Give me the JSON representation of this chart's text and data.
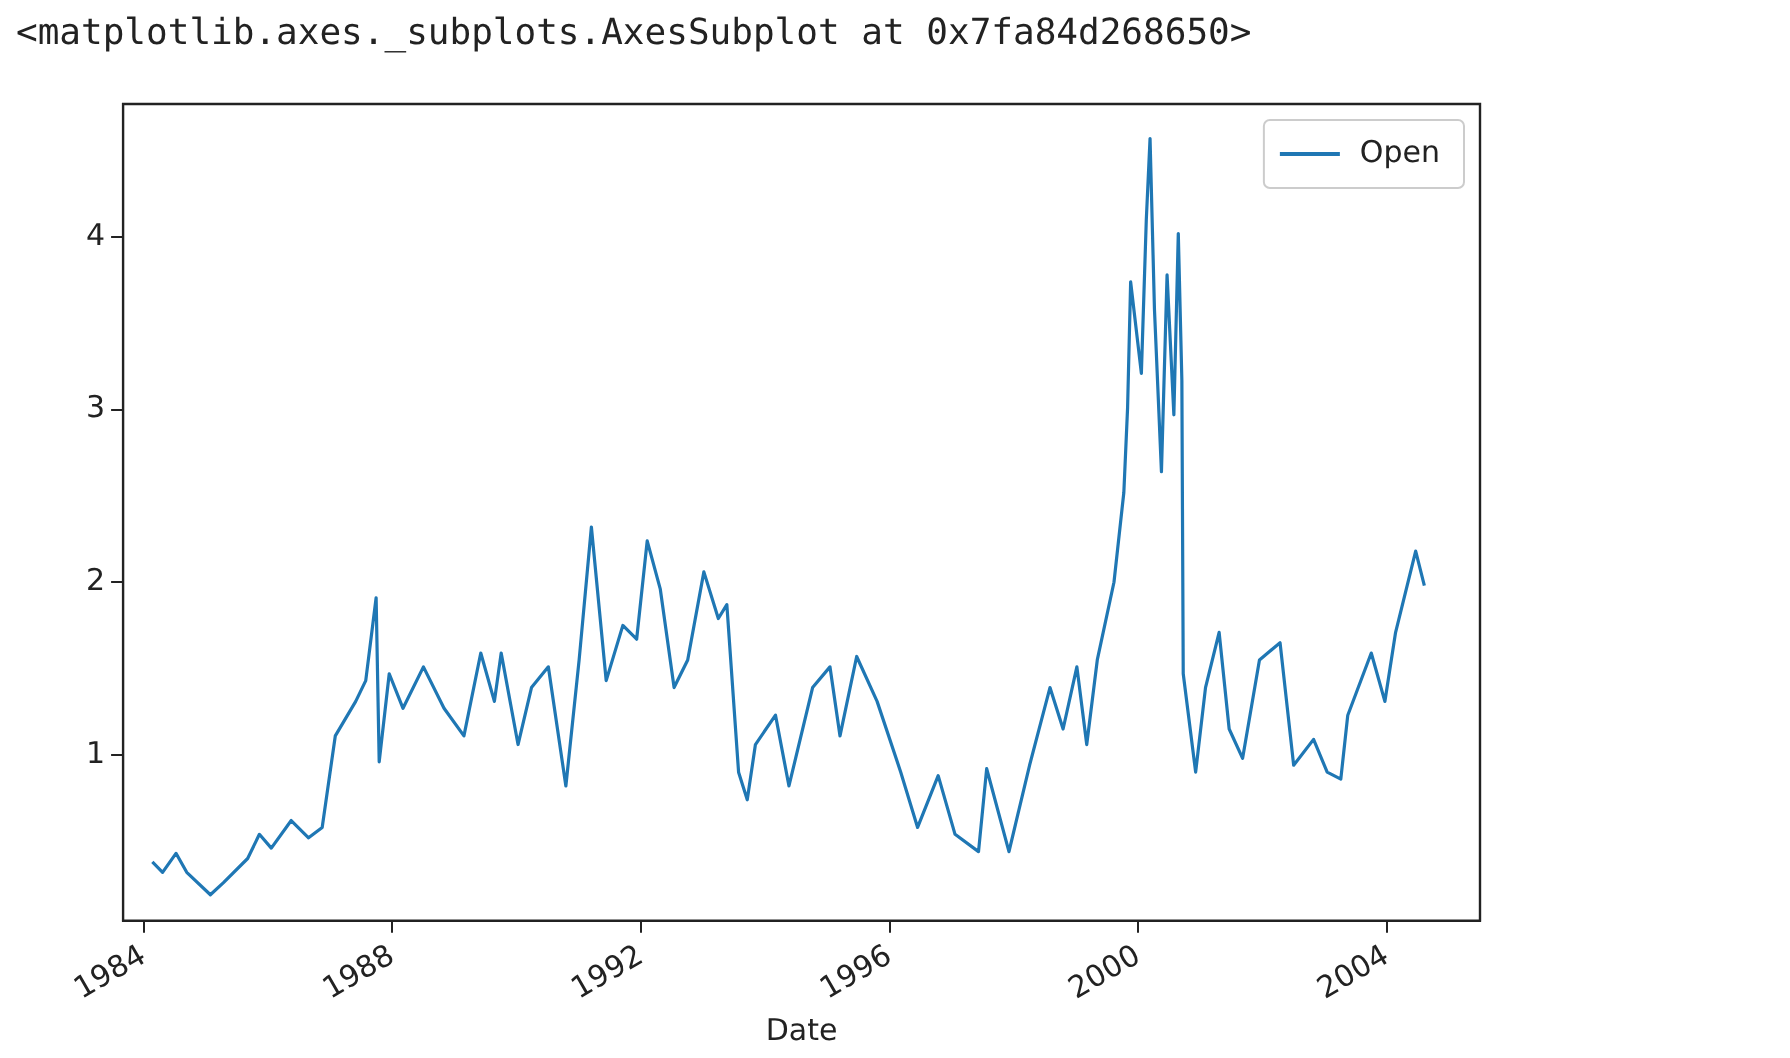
{
  "chart_data": {
    "type": "line",
    "xlabel": "Date",
    "annotations": [
      "<matplotlib.axes._subplots.AxesSubplot at 0x7fa84d268650>"
    ],
    "x": [
      "1984-02-20",
      "1984-04-20",
      "1984-07-08",
      "1984-09-09",
      "1985-01-26",
      "1985-04-13",
      "1985-09-02",
      "1985-11-10",
      "1986-01-19",
      "1986-05-16",
      "1986-08-26",
      "1986-11-14",
      "1987-01-30",
      "1987-05-30",
      "1987-07-28",
      "1987-09-27",
      "1987-10-15",
      "1987-12-13",
      "1988-03-03",
      "1988-07-01",
      "1988-10-30",
      "1989-02-24",
      "1989-06-03",
      "1989-08-22",
      "1989-10-01",
      "1990-01-08",
      "1990-03-28",
      "1990-07-05",
      "1990-10-16",
      "1991-01-02",
      "1991-03-15",
      "1991-06-10",
      "1991-09-16",
      "1991-12-06",
      "1992-02-06",
      "1992-04-23",
      "1992-07-13",
      "1992-10-01",
      "1993-01-04",
      "1993-03-30",
      "1993-05-19",
      "1993-07-27",
      "1993-09-16",
      "1993-11-03",
      "1994-03-01",
      "1994-05-19",
      "1994-10-05",
      "1995-01-15",
      "1995-03-15",
      "1995-06-21",
      "1995-10-19",
      "1996-03-06",
      "1996-06-13",
      "1996-10-12",
      "1997-01-19",
      "1997-06-06",
      "1997-07-24",
      "1997-12-02",
      "1998-04-02",
      "1998-07-31",
      "1998-10-16",
      "1999-01-05",
      "1999-03-04",
      "1999-05-05",
      "1999-08-11",
      "1999-10-08",
      "1999-10-30",
      "1999-11-17",
      "2000-01-19",
      "2000-02-17",
      "2000-03-10",
      "2000-04-05",
      "2000-05-16",
      "2000-06-18",
      "2000-07-28",
      "2000-08-23",
      "2000-09-13",
      "2000-09-21",
      "2000-12-03",
      "2001-01-30",
      "2001-04-20",
      "2001-06-18",
      "2001-09-05",
      "2001-12-13",
      "2002-04-13",
      "2002-07-02",
      "2002-10-27",
      "2003-01-15",
      "2003-04-05",
      "2003-05-16",
      "2003-10-01",
      "2003-12-20",
      "2004-02-21",
      "2004-06-18",
      "2004-08-08"
    ],
    "series": [
      {
        "name": "Open",
        "color": "#1f77b4",
        "values": [
          0.38,
          0.32,
          0.43,
          0.32,
          0.19,
          0.26,
          0.4,
          0.54,
          0.46,
          0.62,
          0.52,
          0.58,
          1.11,
          1.31,
          1.43,
          1.91,
          0.96,
          1.47,
          1.27,
          1.51,
          1.27,
          1.11,
          1.59,
          1.31,
          1.59,
          1.06,
          1.39,
          1.51,
          0.82,
          1.55,
          2.32,
          1.43,
          1.75,
          1.67,
          2.24,
          1.96,
          1.39,
          1.55,
          2.06,
          1.79,
          1.87,
          0.9,
          0.74,
          1.06,
          1.23,
          0.82,
          1.39,
          1.51,
          1.11,
          1.57,
          1.31,
          0.9,
          0.58,
          0.88,
          0.54,
          0.44,
          0.92,
          0.44,
          0.94,
          1.39,
          1.15,
          1.51,
          1.06,
          1.55,
          2.0,
          2.52,
          3.01,
          3.74,
          3.21,
          4.1,
          4.57,
          3.58,
          2.64,
          3.78,
          2.97,
          4.02,
          3.17,
          1.47,
          0.9,
          1.39,
          1.71,
          1.15,
          0.98,
          1.55,
          1.65,
          0.94,
          1.09,
          0.9,
          0.86,
          1.23,
          1.59,
          1.31,
          1.71,
          2.18,
          1.98
        ]
      }
    ],
    "xlim": [
      "1983-09",
      "2005-07"
    ],
    "xticks": [
      {
        "value": "1984",
        "label": "1984"
      },
      {
        "value": "1988",
        "label": "1988"
      },
      {
        "value": "1992",
        "label": "1992"
      },
      {
        "value": "1996",
        "label": "1996"
      },
      {
        "value": "2000",
        "label": "2000"
      },
      {
        "value": "2004",
        "label": "2004"
      }
    ],
    "ylim": [
      0.04,
      4.77
    ],
    "yticks": [
      1,
      2,
      3,
      4
    ],
    "legend": "top right",
    "grid": false,
    "line_style": "solid",
    "marker": "none"
  }
}
